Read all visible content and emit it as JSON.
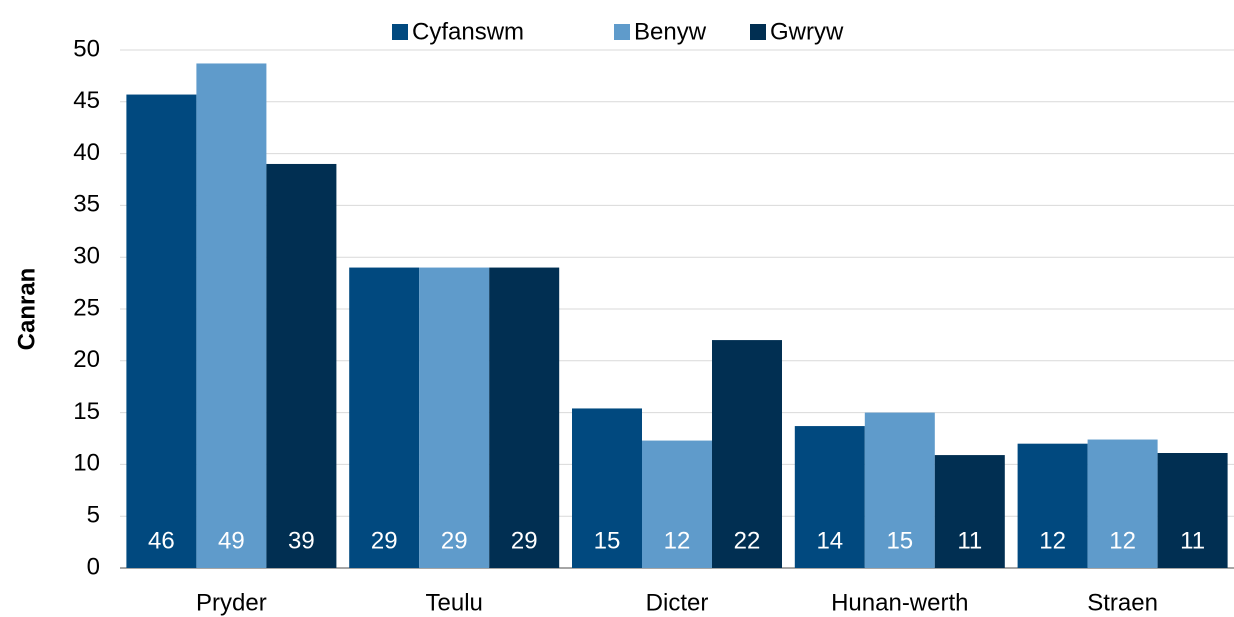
{
  "chart_data": {
    "type": "bar",
    "categories": [
      "Pryder",
      "Teulu",
      "Dicter",
      "Hunan-werth",
      "Straen"
    ],
    "series": [
      {
        "name": "Cyfanswm",
        "color": "#01497f",
        "values": [
          45.7,
          29,
          15.4,
          13.7,
          12
        ],
        "value_labels": [
          "46",
          "29",
          "15",
          "14",
          "12"
        ]
      },
      {
        "name": "Benyw",
        "color": "#5f9bcb",
        "values": [
          48.7,
          29,
          12.3,
          15,
          12.4
        ],
        "value_labels": [
          "49",
          "29",
          "12",
          "15",
          "12"
        ]
      },
      {
        "name": "Gwryw",
        "color": "#012f52",
        "values": [
          39,
          29,
          22,
          10.9,
          11.1
        ],
        "value_labels": [
          "39",
          "29",
          "22",
          "11",
          "11"
        ]
      }
    ],
    "y_label": "Canran",
    "ylim": [
      0,
      50
    ],
    "yticks": [
      0,
      5,
      10,
      15,
      20,
      25,
      30,
      35,
      40,
      45,
      50
    ],
    "grid": true,
    "legend": "top"
  }
}
